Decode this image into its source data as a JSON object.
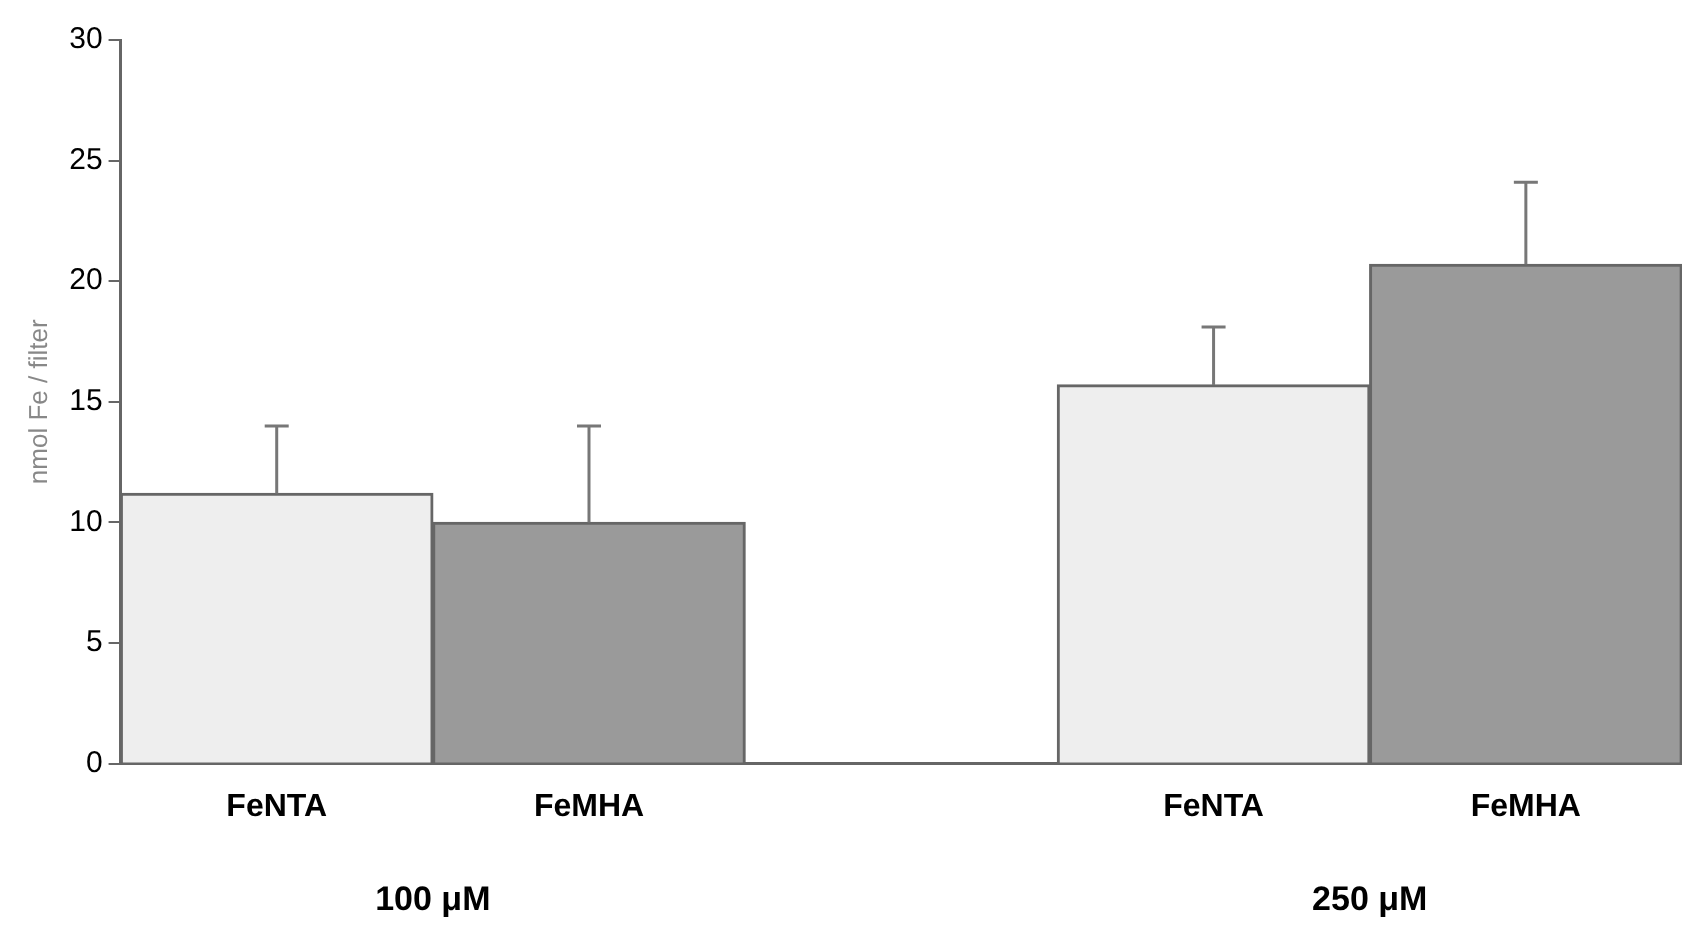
{
  "chart_data": {
    "type": "bar",
    "ylabel": "nmol Fe / filter",
    "categories": [
      "FeNTA",
      "FeMHA",
      null,
      "FeNTA",
      "FeMHA"
    ],
    "values": [
      11.2,
      10.0,
      null,
      15.7,
      20.7
    ],
    "errors": [
      2.8,
      4.0,
      null,
      2.4,
      3.4
    ],
    "colors": [
      "#eeeeee",
      "#9a9a9a",
      "#ffffff",
      "#eeeeee",
      "#9a9a9a"
    ],
    "ylim": [
      0,
      30
    ],
    "yticks": [
      0,
      5,
      10,
      15,
      20,
      25,
      30
    ],
    "annotations": [
      "100 μM",
      "250 μM"
    ],
    "grid": false,
    "legend": false
  }
}
